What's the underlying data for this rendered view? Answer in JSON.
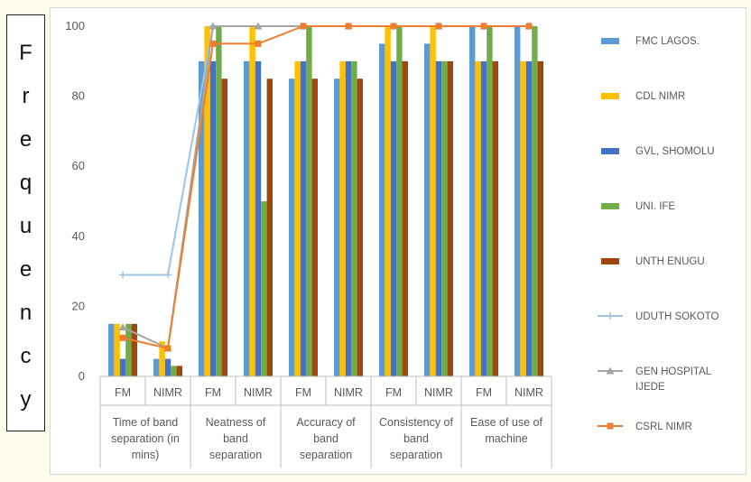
{
  "chart_data": {
    "type": "bar",
    "title": "",
    "ylabel": "Frequency",
    "xlabel": "",
    "ylim": [
      0,
      100
    ],
    "yticks": [
      0,
      20,
      40,
      60,
      80,
      100
    ],
    "groups": [
      {
        "label": "Time of band separation (in mins)",
        "lines": [
          "Time of band",
          "separation (in",
          "mins)"
        ],
        "sub": [
          "FM",
          "NIMR"
        ]
      },
      {
        "label": "Neatness of band separation",
        "lines": [
          "Neatness of",
          "band",
          "separation"
        ],
        "sub": [
          "FM",
          "NIMR"
        ]
      },
      {
        "label": "Accuracy of band separation",
        "lines": [
          "Accuracy of",
          "band",
          "separation"
        ],
        "sub": [
          "FM",
          "NIMR"
        ]
      },
      {
        "label": "Consistency of band separation",
        "lines": [
          "Consistency of",
          "band",
          "separation"
        ],
        "sub": [
          "FM",
          "NIMR"
        ]
      },
      {
        "label": "Ease of use of machine",
        "lines": [
          "Ease of use of",
          "machine"
        ],
        "sub": [
          "FM",
          "NIMR"
        ]
      }
    ],
    "bar_series": [
      {
        "name": "FMC LAGOS.",
        "color": "#5b9bd5",
        "values": [
          15,
          5,
          90,
          90,
          85,
          85,
          95,
          95,
          100,
          100
        ]
      },
      {
        "name": "CDL NIMR",
        "color": "#ffc000",
        "values": [
          15,
          10,
          100,
          100,
          90,
          90,
          100,
          100,
          90,
          90
        ]
      },
      {
        "name": "GVL, SHOMOLU",
        "color": "#4472c4",
        "values": [
          5,
          5,
          90,
          90,
          90,
          90,
          90,
          90,
          90,
          90
        ]
      },
      {
        "name": "UNI. IFE",
        "color": "#70ad47",
        "values": [
          15,
          3,
          100,
          50,
          100,
          90,
          100,
          90,
          100,
          100
        ]
      },
      {
        "name": "UNTH ENUGU",
        "color": "#9e480e",
        "values": [
          15,
          3,
          85,
          85,
          85,
          85,
          90,
          90,
          90,
          90
        ]
      }
    ],
    "line_series": [
      {
        "name": "UDUTH SOKOTO",
        "color": "#9dc3e6",
        "marker": "plus",
        "values": [
          29,
          29,
          100,
          100,
          100,
          100,
          100,
          100,
          100,
          100
        ]
      },
      {
        "name": "GEN HOSPITAL IJEDE",
        "color": "#a5a5a5",
        "marker": "triangle",
        "values": [
          14,
          8,
          100,
          100,
          100,
          100,
          100,
          100,
          100,
          100
        ]
      },
      {
        "name": "CSRL NIMR",
        "color": "#ed7d31",
        "marker": "square",
        "values": [
          11,
          8,
          95,
          95,
          100,
          100,
          100,
          100,
          100,
          100
        ]
      }
    ],
    "legend": [
      {
        "label": "FMC LAGOS.",
        "kind": "bar",
        "color": "#5b9bd5"
      },
      {
        "label": "CDL NIMR",
        "kind": "bar",
        "color": "#ffc000"
      },
      {
        "label": "GVL, SHOMOLU",
        "kind": "bar",
        "color": "#4472c4"
      },
      {
        "label": "UNI. IFE",
        "kind": "bar",
        "color": "#70ad47"
      },
      {
        "label": "UNTH ENUGU",
        "kind": "bar",
        "color": "#9e480e"
      },
      {
        "label": "UDUTH SOKOTO",
        "kind": "line",
        "marker": "plus",
        "color": "#9dc3e6"
      },
      {
        "label": "GEN HOSPITAL IJEDE",
        "lines": [
          "GEN HOSPITAL",
          "IJEDE"
        ],
        "kind": "line",
        "marker": "triangle",
        "color": "#a5a5a5"
      },
      {
        "label": "CSRL NIMR",
        "kind": "line",
        "marker": "square",
        "color": "#ed7d31"
      }
    ],
    "legend_position": "right"
  },
  "ylabel_letters": [
    "F",
    "r",
    "e",
    "q",
    "u",
    "e",
    "n",
    "c",
    "y"
  ]
}
